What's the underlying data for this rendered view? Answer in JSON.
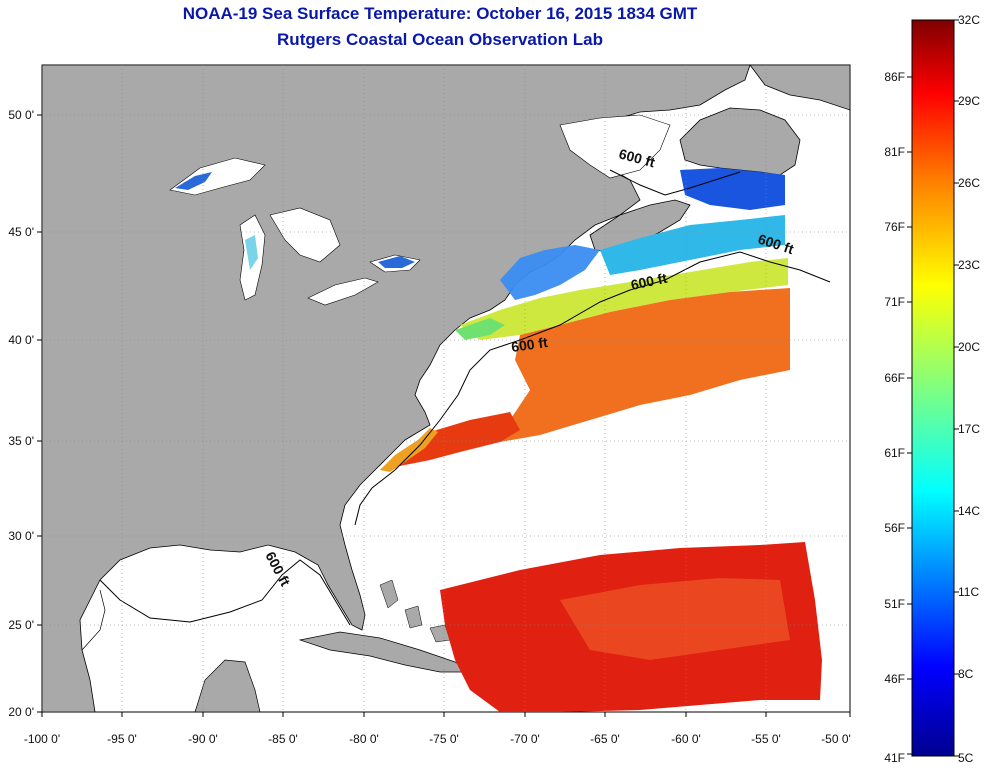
{
  "header": {
    "title": "NOAA-19 Sea Surface Temperature:  October 16, 2015 1834 GMT",
    "subtitle": "Rutgers Coastal Ocean Observation Lab"
  },
  "axes": {
    "lon_ticks": [
      "-100 0'",
      "-95 0'",
      "-90 0'",
      "-85 0'",
      "-80 0'",
      "-75 0'",
      "-70 0'",
      "-65 0'",
      "-60 0'",
      "-55 0'",
      "-50 0'"
    ],
    "lat_ticks": [
      "20 0'",
      "25 0'",
      "30 0'",
      "35 0'",
      "40 0'",
      "45 0'",
      "50 0'"
    ],
    "lon_range": [
      -100,
      -50
    ],
    "lat_range": [
      20,
      52
    ]
  },
  "contour_labels": [
    "600 ft",
    "600 ft",
    "600 ft",
    "600 ft",
    "600 ft"
  ],
  "colorbar": {
    "celsius_labels": [
      "32C",
      "29C",
      "26C",
      "23C",
      "20C",
      "17C",
      "14C",
      "11C",
      "8C",
      "5C"
    ],
    "fahrenheit_labels": [
      "86F",
      "81F",
      "76F",
      "71F",
      "66F",
      "61F",
      "56F",
      "51F",
      "46F",
      "41F"
    ],
    "colors": [
      "#7f0000",
      "#ff0000",
      "#ff8000",
      "#ffff00",
      "#80ff80",
      "#00ffff",
      "#0080ff",
      "#0000ff",
      "#00008f"
    ]
  },
  "colors": {
    "land": "#a9a9a9",
    "title": "#0a18a8"
  }
}
